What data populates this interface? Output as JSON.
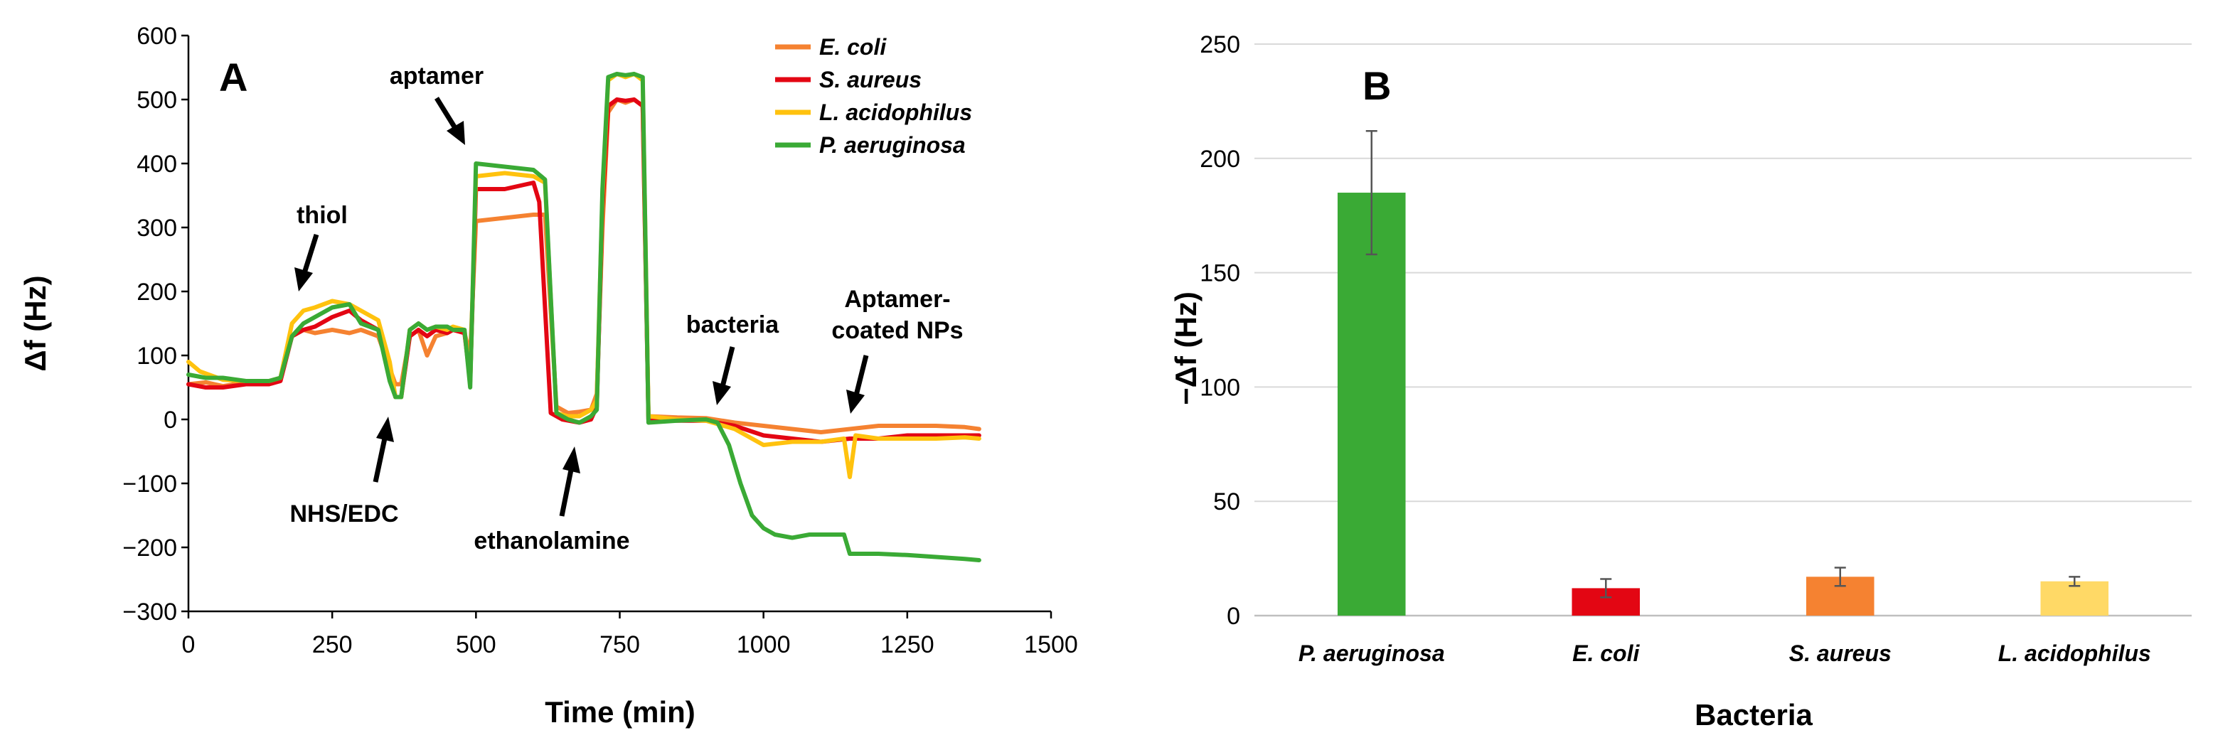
{
  "chart_data": [
    {
      "panel_label": "A",
      "type": "line",
      "xlabel": "Time (min)",
      "ylabel": "Δf (Hz)",
      "xlim": [
        0,
        1500
      ],
      "ylim": [
        -300,
        600
      ],
      "x_ticks": [
        0,
        250,
        500,
        750,
        1000,
        1250,
        1500
      ],
      "y_ticks": [
        -300,
        -200,
        -100,
        0,
        100,
        200,
        300,
        400,
        500,
        600
      ],
      "y_tick_labels": [
        "−300",
        "−200",
        "−100",
        "0",
        "100",
        "200",
        "300",
        "400",
        "500",
        "600"
      ],
      "grid": false,
      "legend_position": "top-right",
      "series": [
        {
          "name": "E. coli",
          "color": "#F58231",
          "x": [
            0,
            30,
            60,
            100,
            140,
            160,
            180,
            200,
            220,
            250,
            280,
            300,
            330,
            350,
            360,
            370,
            385,
            400,
            415,
            430,
            450,
            460,
            480,
            490,
            500,
            550,
            600,
            620,
            640,
            660,
            680,
            700,
            710,
            720,
            730,
            745,
            760,
            775,
            790,
            800,
            850,
            900,
            950,
            1000,
            1050,
            1100,
            1150,
            1200,
            1250,
            1300,
            1350,
            1375
          ],
          "y": [
            55,
            58,
            52,
            58,
            55,
            65,
            130,
            140,
            135,
            140,
            135,
            140,
            130,
            80,
            55,
            55,
            130,
            140,
            100,
            130,
            135,
            140,
            135,
            100,
            310,
            315,
            320,
            320,
            20,
            10,
            12,
            15,
            40,
            300,
            480,
            500,
            495,
            500,
            490,
            5,
            3,
            2,
            -5,
            -10,
            -15,
            -20,
            -15,
            -10,
            -10,
            -10,
            -12,
            -15
          ]
        },
        {
          "name": "S. aureus",
          "color": "#E30613",
          "x": [
            0,
            30,
            60,
            100,
            140,
            160,
            180,
            200,
            220,
            250,
            280,
            300,
            330,
            350,
            360,
            370,
            385,
            400,
            415,
            430,
            450,
            460,
            480,
            490,
            500,
            550,
            600,
            610,
            630,
            650,
            680,
            700,
            710,
            720,
            730,
            745,
            760,
            775,
            790,
            800,
            850,
            900,
            950,
            1000,
            1050,
            1100,
            1150,
            1200,
            1250,
            1300,
            1350,
            1375
          ],
          "y": [
            55,
            50,
            50,
            55,
            55,
            60,
            130,
            140,
            145,
            160,
            170,
            155,
            140,
            80,
            35,
            35,
            130,
            140,
            130,
            140,
            135,
            140,
            135,
            60,
            360,
            360,
            370,
            340,
            10,
            0,
            -5,
            0,
            20,
            330,
            490,
            500,
            498,
            500,
            490,
            0,
            -2,
            -2,
            -10,
            -25,
            -30,
            -35,
            -30,
            -30,
            -25,
            -25,
            -25,
            -25
          ]
        },
        {
          "name": "L. acidophilus",
          "color": "#FFC20E",
          "x": [
            0,
            20,
            60,
            100,
            140,
            160,
            180,
            200,
            220,
            250,
            280,
            300,
            330,
            350,
            360,
            370,
            385,
            400,
            415,
            430,
            450,
            460,
            480,
            490,
            500,
            550,
            600,
            620,
            640,
            660,
            680,
            700,
            710,
            720,
            730,
            745,
            760,
            775,
            790,
            800,
            850,
            900,
            950,
            1000,
            1050,
            1100,
            1140,
            1150,
            1160,
            1200,
            1250,
            1300,
            1350,
            1375
          ],
          "y": [
            90,
            75,
            62,
            60,
            60,
            65,
            150,
            170,
            175,
            185,
            180,
            170,
            155,
            90,
            35,
            35,
            140,
            150,
            140,
            145,
            140,
            145,
            140,
            60,
            380,
            385,
            380,
            370,
            10,
            5,
            5,
            15,
            30,
            350,
            530,
            540,
            535,
            540,
            530,
            5,
            0,
            -2,
            -15,
            -40,
            -35,
            -35,
            -30,
            -90,
            -25,
            -30,
            -30,
            -30,
            -28,
            -30
          ]
        },
        {
          "name": "P. aeruginosa",
          "color": "#3AAA35",
          "x": [
            0,
            30,
            60,
            100,
            140,
            160,
            180,
            200,
            220,
            250,
            280,
            300,
            330,
            350,
            360,
            370,
            385,
            400,
            415,
            430,
            450,
            460,
            480,
            490,
            500,
            550,
            600,
            620,
            640,
            660,
            680,
            700,
            710,
            720,
            730,
            745,
            760,
            775,
            790,
            800,
            850,
            900,
            920,
            940,
            960,
            980,
            1000,
            1020,
            1050,
            1080,
            1100,
            1130,
            1140,
            1150,
            1160,
            1200,
            1250,
            1300,
            1350,
            1375
          ],
          "y": [
            70,
            65,
            65,
            60,
            60,
            65,
            130,
            150,
            160,
            175,
            180,
            150,
            140,
            60,
            35,
            35,
            140,
            150,
            140,
            145,
            145,
            140,
            140,
            50,
            400,
            395,
            390,
            375,
            10,
            0,
            -5,
            5,
            15,
            360,
            535,
            540,
            538,
            540,
            535,
            -5,
            -2,
            0,
            -5,
            -40,
            -100,
            -150,
            -170,
            -180,
            -185,
            -180,
            -180,
            -180,
            -180,
            -210,
            -210,
            -210,
            -212,
            -215,
            -218,
            -220
          ]
        }
      ],
      "annotations": [
        {
          "text": "thiol"
        },
        {
          "text": "NHS/EDC"
        },
        {
          "text": "aptamer"
        },
        {
          "text": "ethanolamine"
        },
        {
          "text": "bacteria"
        },
        {
          "text": "Aptamer-"
        },
        {
          "text": "coated NPs"
        }
      ]
    },
    {
      "panel_label": "B",
      "type": "bar",
      "xlabel": "Bacteria",
      "ylabel": "−Δf (Hz)",
      "ylim": [
        0,
        250
      ],
      "y_ticks": [
        0,
        50,
        100,
        150,
        200,
        250
      ],
      "grid": true,
      "categories": [
        "P. aeruginosa",
        "E. coli",
        "S. aureus",
        "L. acidophilus"
      ],
      "values": [
        185,
        12,
        17,
        15
      ],
      "errors": [
        27,
        4,
        4,
        2
      ],
      "colors": [
        "#3AAA35",
        "#E30613",
        "#F58231",
        "#FFD966"
      ]
    }
  ]
}
